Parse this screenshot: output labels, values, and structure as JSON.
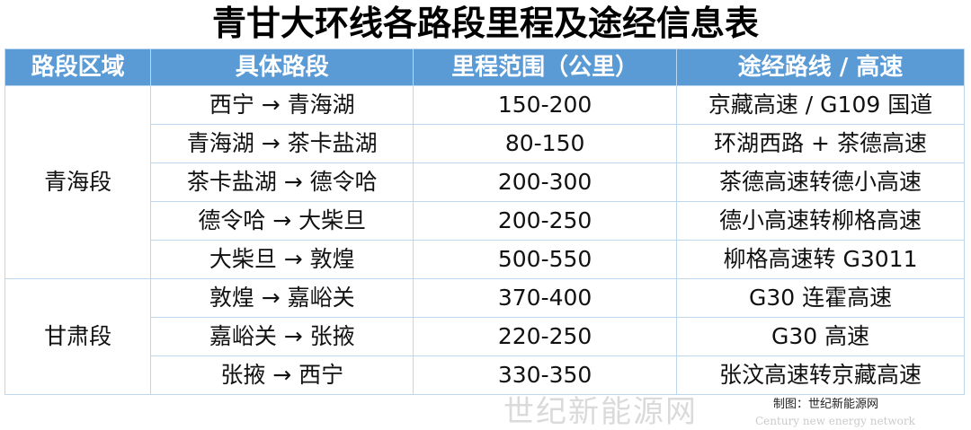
{
  "title": "青甘大环线各路段里程及途经信息表",
  "headers": [
    "路段区域",
    "具体路段",
    "里程范围（公里）",
    "途经路线 / 高速"
  ],
  "groups": [
    {
      "region": "青海段",
      "rows": [
        [
          "西宁 → 青海湖",
          "150-200",
          "京藏高速 / G109 国道"
        ],
        [
          "青海湖 → 茶卡盐湖",
          "80-150",
          "环湖西路 + 茶德高速"
        ],
        [
          "茶卡盐湖 → 德令哈",
          "200-300",
          "茶德高速转德小高速"
        ],
        [
          "德令哈 → 大柴旦",
          "200-250",
          "德小高速转柳格高速"
        ],
        [
          "大柴旦 → 敦煌",
          "500-550",
          "柳格高速转 G3011"
        ]
      ]
    },
    {
      "region": "甘肃段",
      "rows": [
        [
          "敦煌 → 嘉峪关",
          "370-400",
          "G30 连霍高速"
        ],
        [
          "嘉峪关 → 张掖",
          "220-250",
          "G30 高速"
        ],
        [
          "张掖 → 西宁",
          "330-350",
          "张汶高速转京藏高速"
        ]
      ]
    }
  ],
  "credit": "制图：世纪新能源网",
  "watermark": {
    "cn": "世纪新能源网",
    "en": "Century new energy network"
  },
  "colors": {
    "header_bg": "#5b9bd5",
    "border": "#bdd7ee"
  }
}
